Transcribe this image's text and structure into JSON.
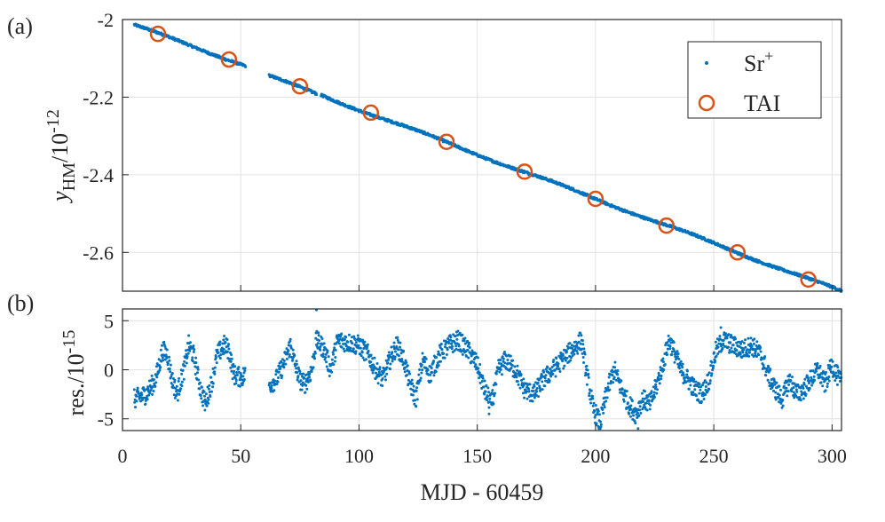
{
  "chart_data": [
    {
      "panel_label": "(a)",
      "type": "scatter",
      "xlabel": "",
      "ylabel": {
        "main": "y",
        "sub": "HM",
        "rest": "/10",
        "sup": "-12"
      },
      "xlim": [
        0,
        304
      ],
      "ylim": [
        -2.7,
        -2.0
      ],
      "xticks": [
        0,
        50,
        100,
        150,
        200,
        250,
        300
      ],
      "yticks": [
        -2.0,
        -2.2,
        -2.4,
        -2.6
      ],
      "ytick_labels": [
        "-2",
        "-2.2",
        "-2.4",
        "-2.6"
      ],
      "grid": true,
      "legend_position": "top-right",
      "series": [
        {
          "name": "Sr",
          "name_sup": "+",
          "marker": "dot",
          "color": "#0072BD",
          "segments": [
            {
              "x": [
                5,
                52
              ],
              "y": [
                -2.015,
                -2.118
              ]
            },
            {
              "x": [
                62,
                82
              ],
              "y": [
                -2.146,
                -2.192
              ]
            },
            {
              "x": [
                84,
                304
              ],
              "y": [
                -2.195,
                -2.701
              ]
            }
          ]
        },
        {
          "name": "TAI",
          "marker": "circle",
          "color": "#D95319",
          "x": [
            15,
            45,
            75,
            105,
            137,
            170,
            200,
            230,
            260,
            290
          ],
          "y": [
            -2.037,
            -2.103,
            -2.172,
            -2.24,
            -2.315,
            -2.392,
            -2.462,
            -2.531,
            -2.6,
            -2.67
          ]
        }
      ]
    },
    {
      "panel_label": "(b)",
      "type": "scatter",
      "xlabel": "MJD - 60459",
      "ylabel": {
        "main": "res./10",
        "sup": "-15"
      },
      "xlim": [
        0,
        304
      ],
      "ylim": [
        -6.2,
        6.2
      ],
      "xticks": [
        0,
        50,
        100,
        150,
        200,
        250,
        300
      ],
      "xtick_labels": [
        "0",
        "50",
        "100",
        "150",
        "200",
        "250",
        "300"
      ],
      "yticks": [
        5,
        0,
        -5
      ],
      "ytick_labels": [
        "5",
        "0",
        "-5"
      ],
      "grid": true,
      "series": [
        {
          "name": "residuals",
          "marker": "dot",
          "color": "#0072BD",
          "trace": [
            [
              5,
              -3
            ],
            [
              10,
              -2.5
            ],
            [
              14,
              -1
            ],
            [
              17,
              2
            ],
            [
              19,
              1.5
            ],
            [
              21,
              -1
            ],
            [
              23,
              -2.5
            ],
            [
              26,
              0
            ],
            [
              28,
              2.5
            ],
            [
              30,
              1.5
            ],
            [
              33,
              -2
            ],
            [
              35,
              -3.5
            ],
            [
              38,
              -1
            ],
            [
              40,
              1.5
            ],
            [
              43,
              2.5
            ],
            [
              45,
              2
            ],
            [
              47,
              -0.5
            ],
            [
              50,
              -0.8
            ],
            [
              52,
              -0.5
            ],
            [
              62,
              -1.5
            ],
            [
              65,
              -1
            ],
            [
              68,
              0.5
            ],
            [
              71,
              2.5
            ],
            [
              73,
              0.5
            ],
            [
              75,
              -1
            ],
            [
              77,
              -1.5
            ],
            [
              80,
              0
            ],
            [
              82,
              3
            ],
            [
              85,
              2.2
            ],
            [
              88,
              0
            ],
            [
              91,
              3
            ],
            [
              95,
              2.8
            ],
            [
              100,
              2.5
            ],
            [
              104,
              1.5
            ],
            [
              107,
              0
            ],
            [
              110,
              -1
            ],
            [
              113,
              1
            ],
            [
              116,
              2.5
            ],
            [
              119,
              1
            ],
            [
              121,
              -1
            ],
            [
              124,
              -3
            ],
            [
              127,
              1
            ],
            [
              130,
              -0.5
            ],
            [
              134,
              1.5
            ],
            [
              138,
              2.5
            ],
            [
              142,
              3
            ],
            [
              146,
              2
            ],
            [
              150,
              0.5
            ],
            [
              153,
              -2
            ],
            [
              156,
              -3.5
            ],
            [
              159,
              0
            ],
            [
              162,
              1
            ],
            [
              166,
              0
            ],
            [
              170,
              -2
            ],
            [
              174,
              -2.5
            ],
            [
              178,
              -1
            ],
            [
              182,
              0
            ],
            [
              186,
              1
            ],
            [
              190,
              2
            ],
            [
              194,
              3
            ],
            [
              196,
              0
            ],
            [
              199,
              -4
            ],
            [
              202,
              -5.5
            ],
            [
              205,
              -2
            ],
            [
              208,
              0
            ],
            [
              211,
              -2
            ],
            [
              214,
              -3.5
            ],
            [
              217,
              -4.5
            ],
            [
              220,
              -3
            ],
            [
              223,
              -3.5
            ],
            [
              226,
              -1.5
            ],
            [
              229,
              1
            ],
            [
              231,
              3
            ],
            [
              233,
              2
            ],
            [
              236,
              0
            ],
            [
              239,
              -1
            ],
            [
              242,
              -2
            ],
            [
              245,
              -2.5
            ],
            [
              248,
              -1
            ],
            [
              251,
              2
            ],
            [
              254,
              3
            ],
            [
              258,
              2.5
            ],
            [
              262,
              2
            ],
            [
              266,
              2.5
            ],
            [
              270,
              1.5
            ],
            [
              273,
              -0.5
            ],
            [
              276,
              -2
            ],
            [
              279,
              -3
            ],
            [
              282,
              -1
            ],
            [
              285,
              -2.5
            ],
            [
              288,
              -2
            ],
            [
              291,
              -1
            ],
            [
              294,
              0
            ],
            [
              297,
              -1.5
            ],
            [
              300,
              0.5
            ],
            [
              304,
              -1.5
            ]
          ],
          "outliers": [
            [
              82,
              6.1
            ],
            [
              218,
              -6.0
            ],
            [
              155,
              -4.5
            ],
            [
              253,
              4.3
            ]
          ]
        }
      ]
    }
  ]
}
